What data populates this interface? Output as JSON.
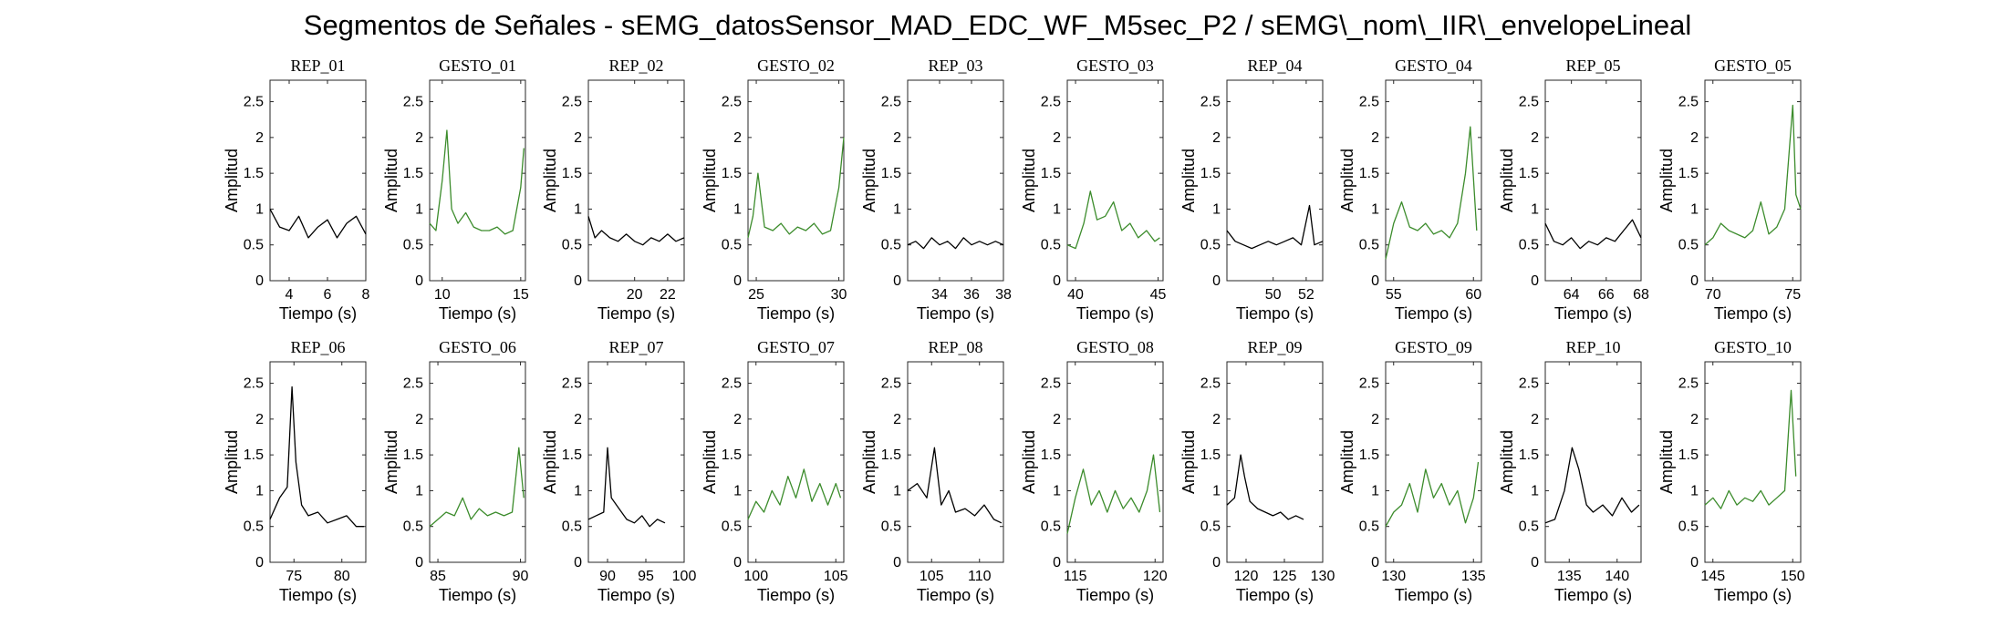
{
  "title": "Segmentos de Señales - sEMG_datosSensor_MAD_EDC_WF_M5sec_P2 / sEMG\\_nom\\_IIR\\_envelopeLineal",
  "colors": {
    "rep": "#000000",
    "gesto": "#3c8c2c",
    "axes": "#262626"
  },
  "chart_data": [
    {
      "type": "line",
      "title": "REP_01",
      "xlabel": "Tiempo (s)",
      "ylabel": "Amplitud",
      "xlim": [
        3,
        8
      ],
      "ylim": [
        0,
        2.8
      ],
      "xticks": [
        4,
        6,
        8
      ],
      "yticks": [
        0,
        0.5,
        1,
        1.5,
        2,
        2.5
      ],
      "color": "#000000",
      "x": [
        3,
        3.5,
        4,
        4.5,
        5,
        5.5,
        6,
        6.5,
        7,
        7.5,
        8
      ],
      "y": [
        1.0,
        0.75,
        0.7,
        0.9,
        0.6,
        0.75,
        0.85,
        0.6,
        0.8,
        0.9,
        0.65
      ]
    },
    {
      "type": "line",
      "title": "GESTO_01",
      "xlabel": "Tiempo (s)",
      "ylabel": "Amplitud",
      "xlim": [
        9.2,
        15.3
      ],
      "ylim": [
        0,
        2.8
      ],
      "xticks": [
        10,
        15
      ],
      "yticks": [
        0,
        0.5,
        1,
        1.5,
        2,
        2.5
      ],
      "color": "#3c8c2c",
      "x": [
        9.2,
        9.6,
        10,
        10.3,
        10.6,
        11,
        11.5,
        12,
        12.5,
        13,
        13.5,
        14,
        14.5,
        15,
        15.2
      ],
      "y": [
        0.8,
        0.7,
        1.4,
        2.1,
        1.0,
        0.8,
        0.95,
        0.75,
        0.7,
        0.7,
        0.75,
        0.65,
        0.7,
        1.3,
        1.85
      ]
    },
    {
      "type": "line",
      "title": "REP_02",
      "xlabel": "Tiempo (s)",
      "ylabel": "Amplitud",
      "xlim": [
        17.2,
        23
      ],
      "ylim": [
        0,
        2.8
      ],
      "xticks": [
        20,
        22
      ],
      "yticks": [
        0,
        0.5,
        1,
        1.5,
        2,
        2.5
      ],
      "color": "#000000",
      "x": [
        17.2,
        17.6,
        18,
        18.5,
        19,
        19.5,
        20,
        20.5,
        21,
        21.5,
        22,
        22.5,
        23
      ],
      "y": [
        0.9,
        0.6,
        0.7,
        0.6,
        0.55,
        0.65,
        0.55,
        0.5,
        0.6,
        0.55,
        0.65,
        0.55,
        0.6
      ]
    },
    {
      "type": "line",
      "title": "GESTO_02",
      "xlabel": "Tiempo (s)",
      "ylabel": "Amplitud",
      "xlim": [
        24.5,
        30.3
      ],
      "ylim": [
        0,
        2.8
      ],
      "xticks": [
        25,
        30
      ],
      "yticks": [
        0,
        0.5,
        1,
        1.5,
        2,
        2.5
      ],
      "color": "#3c8c2c",
      "x": [
        24.5,
        24.8,
        25.1,
        25.5,
        26,
        26.5,
        27,
        27.5,
        28,
        28.5,
        29,
        29.5,
        30,
        30.3
      ],
      "y": [
        0.6,
        0.9,
        1.5,
        0.75,
        0.7,
        0.8,
        0.65,
        0.75,
        0.7,
        0.8,
        0.65,
        0.7,
        1.3,
        2.0
      ]
    },
    {
      "type": "line",
      "title": "REP_03",
      "xlabel": "Tiempo (s)",
      "ylabel": "Amplitud",
      "xlim": [
        32,
        38
      ],
      "ylim": [
        0,
        2.8
      ],
      "xticks": [
        34,
        36,
        38
      ],
      "yticks": [
        0,
        0.5,
        1,
        1.5,
        2,
        2.5
      ],
      "color": "#000000",
      "x": [
        32,
        32.5,
        33,
        33.5,
        34,
        34.5,
        35,
        35.5,
        36,
        36.5,
        37,
        37.5,
        38
      ],
      "y": [
        0.5,
        0.55,
        0.45,
        0.6,
        0.5,
        0.55,
        0.45,
        0.6,
        0.5,
        0.55,
        0.5,
        0.55,
        0.5
      ]
    },
    {
      "type": "line",
      "title": "GESTO_03",
      "xlabel": "Tiempo (s)",
      "ylabel": "Amplitud",
      "xlim": [
        39.5,
        45.3
      ],
      "ylim": [
        0,
        2.8
      ],
      "xticks": [
        40,
        45
      ],
      "yticks": [
        0,
        0.5,
        1,
        1.5,
        2,
        2.5
      ],
      "color": "#3c8c2c",
      "x": [
        39.5,
        40,
        40.5,
        40.9,
        41.3,
        41.8,
        42.3,
        42.8,
        43.3,
        43.8,
        44.3,
        44.8,
        45.1
      ],
      "y": [
        0.5,
        0.45,
        0.8,
        1.25,
        0.85,
        0.9,
        1.1,
        0.7,
        0.8,
        0.6,
        0.7,
        0.55,
        0.6
      ]
    },
    {
      "type": "line",
      "title": "REP_04",
      "xlabel": "Tiempo (s)",
      "ylabel": "Amplitud",
      "xlim": [
        47.2,
        53
      ],
      "ylim": [
        0,
        2.8
      ],
      "xticks": [
        50,
        52
      ],
      "yticks": [
        0,
        0.5,
        1,
        1.5,
        2,
        2.5
      ],
      "color": "#000000",
      "x": [
        47.2,
        47.7,
        48.2,
        48.7,
        49.2,
        49.7,
        50.2,
        50.7,
        51.2,
        51.7,
        52.2,
        52.5,
        53
      ],
      "y": [
        0.7,
        0.55,
        0.5,
        0.45,
        0.5,
        0.55,
        0.5,
        0.55,
        0.6,
        0.5,
        1.05,
        0.5,
        0.55
      ]
    },
    {
      "type": "line",
      "title": "GESTO_04",
      "xlabel": "Tiempo (s)",
      "ylabel": "Amplitud",
      "xlim": [
        54.5,
        60.5
      ],
      "ylim": [
        0,
        2.8
      ],
      "xticks": [
        55,
        60
      ],
      "yticks": [
        0,
        0.5,
        1,
        1.5,
        2,
        2.5
      ],
      "color": "#3c8c2c",
      "x": [
        54.5,
        55,
        55.5,
        56,
        56.5,
        57,
        57.5,
        58,
        58.5,
        59,
        59.5,
        59.8,
        60.2
      ],
      "y": [
        0.3,
        0.8,
        1.1,
        0.75,
        0.7,
        0.8,
        0.65,
        0.7,
        0.6,
        0.8,
        1.5,
        2.15,
        0.7
      ]
    },
    {
      "type": "line",
      "title": "REP_05",
      "xlabel": "Tiempo (s)",
      "ylabel": "Amplitud",
      "xlim": [
        62.5,
        68
      ],
      "ylim": [
        0,
        2.8
      ],
      "xticks": [
        64,
        66,
        68
      ],
      "yticks": [
        0,
        0.5,
        1,
        1.5,
        2,
        2.5
      ],
      "color": "#000000",
      "x": [
        62.5,
        63,
        63.5,
        64,
        64.5,
        65,
        65.5,
        66,
        66.5,
        67,
        67.5,
        68
      ],
      "y": [
        0.8,
        0.55,
        0.5,
        0.6,
        0.45,
        0.55,
        0.5,
        0.6,
        0.55,
        0.7,
        0.85,
        0.6
      ]
    },
    {
      "type": "line",
      "title": "GESTO_05",
      "xlabel": "Tiempo (s)",
      "ylabel": "Amplitud",
      "xlim": [
        69.5,
        75.5
      ],
      "ylim": [
        0,
        2.8
      ],
      "xticks": [
        70,
        75
      ],
      "yticks": [
        0,
        0.5,
        1,
        1.5,
        2,
        2.5
      ],
      "color": "#3c8c2c",
      "x": [
        69.5,
        70,
        70.5,
        71,
        71.5,
        72,
        72.5,
        73,
        73.5,
        74,
        74.5,
        75,
        75.2,
        75.5
      ],
      "y": [
        0.5,
        0.6,
        0.8,
        0.7,
        0.65,
        0.6,
        0.7,
        1.1,
        0.65,
        0.75,
        1.0,
        2.45,
        1.2,
        1.0
      ]
    },
    {
      "type": "line",
      "title": "REP_06",
      "xlabel": "Tiempo (s)",
      "ylabel": "Amplitud",
      "xlim": [
        72.5,
        82.5
      ],
      "ylim": [
        0,
        2.8
      ],
      "xticks": [
        75,
        80
      ],
      "yticks": [
        0,
        0.5,
        1,
        1.5,
        2,
        2.5
      ],
      "color": "#000000",
      "x": [
        72.5,
        73.5,
        74.3,
        74.8,
        75.2,
        75.8,
        76.5,
        77.5,
        78.5,
        79.5,
        80.5,
        81.5,
        82.3
      ],
      "y": [
        0.6,
        0.9,
        1.05,
        2.45,
        1.4,
        0.8,
        0.65,
        0.7,
        0.55,
        0.6,
        0.65,
        0.5,
        0.5
      ]
    },
    {
      "type": "line",
      "title": "GESTO_06",
      "xlabel": "Tiempo (s)",
      "ylabel": "Amplitud",
      "xlim": [
        84.5,
        90.3
      ],
      "ylim": [
        0,
        2.8
      ],
      "xticks": [
        85,
        90
      ],
      "yticks": [
        0,
        0.5,
        1,
        1.5,
        2,
        2.5
      ],
      "color": "#3c8c2c",
      "x": [
        84.5,
        85,
        85.5,
        86,
        86.5,
        87,
        87.5,
        88,
        88.5,
        89,
        89.5,
        89.9,
        90.2
      ],
      "y": [
        0.5,
        0.6,
        0.7,
        0.65,
        0.9,
        0.6,
        0.75,
        0.65,
        0.7,
        0.65,
        0.7,
        1.6,
        0.9
      ]
    },
    {
      "type": "line",
      "title": "REP_07",
      "xlabel": "Tiempo (s)",
      "ylabel": "Amplitud",
      "xlim": [
        87.5,
        100
      ],
      "ylim": [
        0,
        2.8
      ],
      "xticks": [
        90,
        95,
        100
      ],
      "yticks": [
        0,
        0.5,
        1,
        1.5,
        2,
        2.5
      ],
      "color": "#000000",
      "x": [
        87.5,
        88.5,
        89.5,
        90,
        90.5,
        91.5,
        92.5,
        93.5,
        94.5,
        95.5,
        96.5,
        97.5
      ],
      "y": [
        0.6,
        0.65,
        0.7,
        1.6,
        0.9,
        0.75,
        0.6,
        0.55,
        0.65,
        0.5,
        0.6,
        0.55
      ]
    },
    {
      "type": "line",
      "title": "GESTO_07",
      "xlabel": "Tiempo (s)",
      "ylabel": "Amplitud",
      "xlim": [
        99.5,
        105.5
      ],
      "ylim": [
        0,
        2.8
      ],
      "xticks": [
        100,
        105
      ],
      "yticks": [
        0,
        0.5,
        1,
        1.5,
        2,
        2.5
      ],
      "color": "#3c8c2c",
      "x": [
        99.5,
        100,
        100.5,
        101,
        101.5,
        102,
        102.5,
        103,
        103.5,
        104,
        104.5,
        105,
        105.3
      ],
      "y": [
        0.6,
        0.85,
        0.7,
        1.0,
        0.8,
        1.2,
        0.9,
        1.3,
        0.85,
        1.1,
        0.8,
        1.1,
        0.9
      ]
    },
    {
      "type": "line",
      "title": "REP_08",
      "xlabel": "Tiempo (s)",
      "ylabel": "Amplitud",
      "xlim": [
        102.5,
        112.5
      ],
      "ylim": [
        0,
        2.8
      ],
      "xticks": [
        105,
        110
      ],
      "yticks": [
        0,
        0.5,
        1,
        1.5,
        2,
        2.5
      ],
      "color": "#000000",
      "x": [
        102.5,
        103.5,
        104.5,
        105.3,
        106,
        106.8,
        107.5,
        108.5,
        109.5,
        110.5,
        111.5,
        112.3
      ],
      "y": [
        1.0,
        1.1,
        0.9,
        1.6,
        0.8,
        1.0,
        0.7,
        0.75,
        0.65,
        0.8,
        0.6,
        0.55
      ]
    },
    {
      "type": "line",
      "title": "GESTO_08",
      "xlabel": "Tiempo (s)",
      "ylabel": "Amplitud",
      "xlim": [
        114.5,
        120.5
      ],
      "ylim": [
        0,
        2.8
      ],
      "xticks": [
        115,
        120
      ],
      "yticks": [
        0,
        0.5,
        1,
        1.5,
        2,
        2.5
      ],
      "color": "#3c8c2c",
      "x": [
        114.5,
        115,
        115.5,
        116,
        116.5,
        117,
        117.5,
        118,
        118.5,
        119,
        119.5,
        119.9,
        120.3
      ],
      "y": [
        0.4,
        0.9,
        1.3,
        0.8,
        1.0,
        0.7,
        1.0,
        0.75,
        0.9,
        0.7,
        1.0,
        1.5,
        0.7
      ]
    },
    {
      "type": "line",
      "title": "REP_09",
      "xlabel": "Tiempo (s)",
      "ylabel": "Amplitud",
      "xlim": [
        117.5,
        130
      ],
      "ylim": [
        0,
        2.8
      ],
      "xticks": [
        120,
        125,
        130
      ],
      "yticks": [
        0,
        0.5,
        1,
        1.5,
        2,
        2.5
      ],
      "color": "#000000",
      "x": [
        117.5,
        118.5,
        119.3,
        119.8,
        120.5,
        121.5,
        122.5,
        123.5,
        124.5,
        125.5,
        126.5,
        127.5
      ],
      "y": [
        0.8,
        0.9,
        1.5,
        1.2,
        0.85,
        0.75,
        0.7,
        0.65,
        0.7,
        0.6,
        0.65,
        0.6
      ]
    },
    {
      "type": "line",
      "title": "GESTO_09",
      "xlabel": "Tiempo (s)",
      "ylabel": "Amplitud",
      "xlim": [
        129.5,
        135.5
      ],
      "ylim": [
        0,
        2.8
      ],
      "xticks": [
        130,
        135
      ],
      "yticks": [
        0,
        0.5,
        1,
        1.5,
        2,
        2.5
      ],
      "color": "#3c8c2c",
      "x": [
        129.5,
        130,
        130.5,
        131,
        131.5,
        132,
        132.5,
        133,
        133.5,
        134,
        134.5,
        135,
        135.3
      ],
      "y": [
        0.5,
        0.7,
        0.8,
        1.1,
        0.7,
        1.3,
        0.9,
        1.1,
        0.8,
        1.0,
        0.55,
        0.9,
        1.4
      ]
    },
    {
      "type": "line",
      "title": "REP_10",
      "xlabel": "Tiempo (s)",
      "ylabel": "Amplitud",
      "xlim": [
        132.5,
        142.5
      ],
      "ylim": [
        0,
        2.8
      ],
      "xticks": [
        135,
        140
      ],
      "yticks": [
        0,
        0.5,
        1,
        1.5,
        2,
        2.5
      ],
      "color": "#000000",
      "x": [
        132.5,
        133.5,
        134.5,
        135.3,
        136,
        136.8,
        137.5,
        138.5,
        139.5,
        140.5,
        141.5,
        142.3
      ],
      "y": [
        0.55,
        0.6,
        1.0,
        1.6,
        1.3,
        0.8,
        0.7,
        0.8,
        0.65,
        0.9,
        0.7,
        0.8
      ]
    },
    {
      "type": "line",
      "title": "GESTO_10",
      "xlabel": "Tiempo (s)",
      "ylabel": "Amplitud",
      "xlim": [
        144.5,
        150.5
      ],
      "ylim": [
        0,
        2.8
      ],
      "xticks": [
        145,
        150
      ],
      "yticks": [
        0,
        0.5,
        1,
        1.5,
        2,
        2.5
      ],
      "color": "#3c8c2c",
      "x": [
        144.5,
        145,
        145.5,
        146,
        146.5,
        147,
        147.5,
        148,
        148.5,
        149,
        149.5,
        149.9,
        150.2
      ],
      "y": [
        0.8,
        0.9,
        0.75,
        1.0,
        0.8,
        0.9,
        0.85,
        1.0,
        0.8,
        0.9,
        1.0,
        2.4,
        1.2
      ]
    }
  ]
}
